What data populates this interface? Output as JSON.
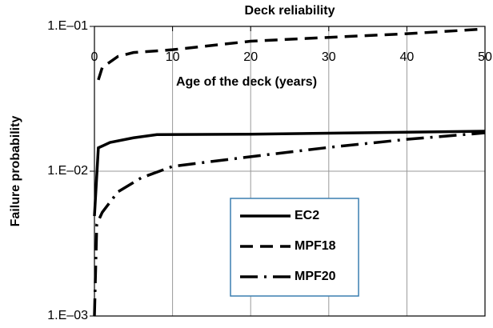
{
  "chart_data": {
    "type": "line",
    "title": "Deck reliability",
    "x_label": "Age of the deck (years)",
    "y_label": "Failure probability",
    "xlim": [
      0,
      50
    ],
    "xticks": [
      0,
      10,
      20,
      30,
      40,
      50
    ],
    "ylim": [
      0.001,
      0.1
    ],
    "log_y": true,
    "yticks": [
      {
        "value": 0.1,
        "label": "1.E–01"
      },
      {
        "value": 0.01,
        "label": "1.E–02"
      },
      {
        "value": 0.001,
        "label": "1.E–03"
      }
    ],
    "grid": true,
    "legend": "center",
    "series": [
      {
        "name": "EC2",
        "color": "#000000",
        "style": "solid",
        "x": [
          0,
          0.5,
          2,
          5,
          8,
          20,
          50
        ],
        "values": [
          0.0049,
          0.0145,
          0.0158,
          0.017,
          0.0179,
          0.018,
          0.0189
        ]
      },
      {
        "name": "MPF18",
        "color": "#000000",
        "style": "dashed",
        "x": [
          0.5,
          1,
          3,
          5,
          10,
          20,
          30,
          40,
          50
        ],
        "values": [
          0.0427,
          0.052,
          0.062,
          0.066,
          0.069,
          0.079,
          0.084,
          0.089,
          0.096
        ]
      },
      {
        "name": "MPF20",
        "color": "#000000",
        "style": "dashdot",
        "x": [
          0,
          0.3,
          1,
          3,
          6,
          10,
          20,
          30,
          40,
          50
        ],
        "values": [
          0.001,
          0.0043,
          0.0052,
          0.0072,
          0.009,
          0.0108,
          0.0126,
          0.0146,
          0.0166,
          0.0184
        ]
      }
    ]
  }
}
